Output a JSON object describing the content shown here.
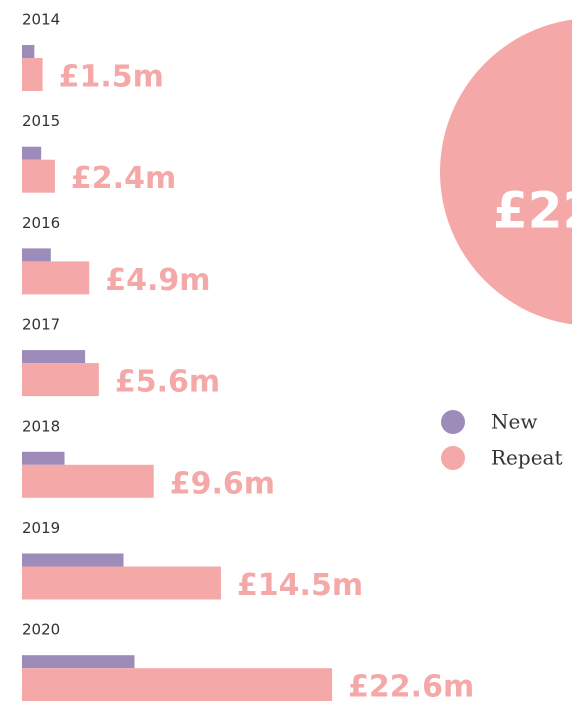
{
  "chart_data": {
    "type": "bar",
    "orientation": "horizontal",
    "categories": [
      "2014",
      "2015",
      "2016",
      "2017",
      "2018",
      "2019",
      "2020"
    ],
    "series": [
      {
        "name": "New",
        "color": "#9d8bb9",
        "values": [
          0.9,
          1.4,
          2.1,
          4.6,
          3.1,
          7.4,
          8.2
        ]
      },
      {
        "name": "Repeat",
        "color": "#f5a8a8",
        "values": [
          1.5,
          2.4,
          4.9,
          5.6,
          9.6,
          14.5,
          22.6
        ],
        "value_labels": [
          "£1.5m",
          "£2.4m",
          "£4.9m",
          "£5.6m",
          "£9.6m",
          "£14.5m",
          "£22.6m"
        ]
      }
    ],
    "xlim": [
      0,
      25
    ],
    "annotation": "£22",
    "legend": "right"
  }
}
